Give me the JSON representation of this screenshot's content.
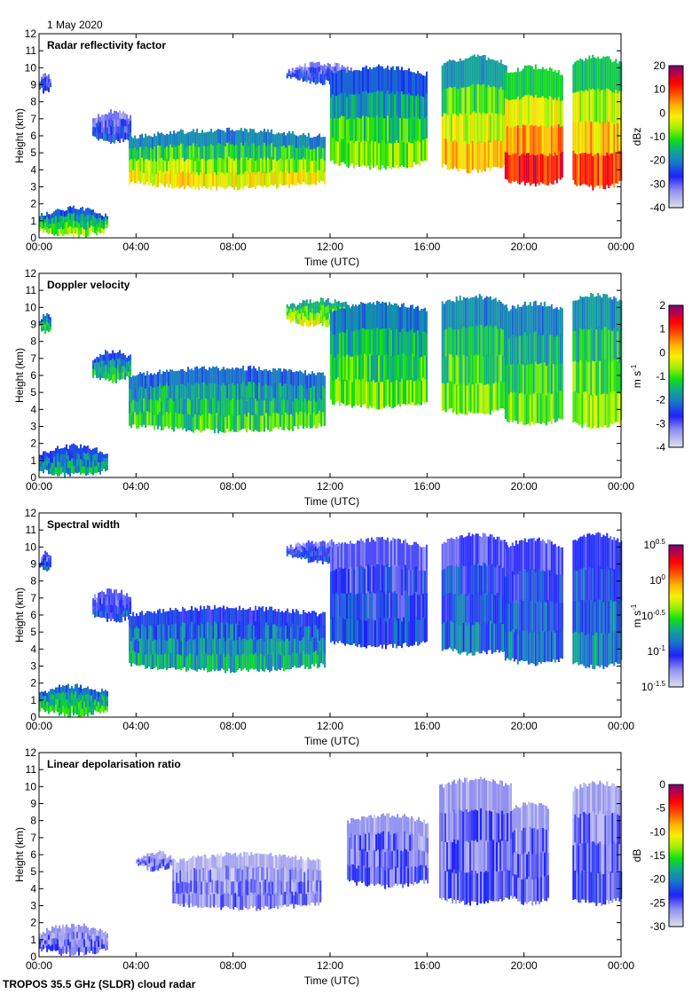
{
  "header": {
    "date": "1 May 2020"
  },
  "footer": {
    "instrument": "TROPOS 35.5 GHz (SLDR) cloud radar"
  },
  "colors": {
    "frame": "#000000",
    "background": "#ffffff"
  },
  "chart_data": [
    {
      "type": "heatmap",
      "title": "Radar reflectivity factor",
      "xlabel": "Time (UTC)",
      "ylabel": "Height (km)",
      "x_ticks": [
        "00:00",
        "04:00",
        "08:00",
        "12:00",
        "16:00",
        "20:00",
        "00:00"
      ],
      "y_ticks": [
        "0",
        "1",
        "2",
        "3",
        "4",
        "5",
        "6",
        "7",
        "8",
        "9",
        "10",
        "11",
        "12"
      ],
      "ylim": [
        0,
        12
      ],
      "xlim_hours": [
        0,
        24
      ],
      "colorbar": {
        "label": "dBz",
        "range": [
          -40,
          20
        ],
        "ticks": [
          "20",
          "10",
          "0",
          "-10",
          "-20",
          "-30",
          "-40"
        ]
      },
      "features": [
        {
          "t0": 0.0,
          "t1": 2.8,
          "h0": 0.0,
          "h1": 1.9,
          "v": 0.5
        },
        {
          "t0": 0.0,
          "t1": 0.5,
          "h0": 8.4,
          "h1": 9.8,
          "v": 0.25
        },
        {
          "t0": 2.2,
          "t1": 3.8,
          "h0": 5.5,
          "h1": 7.6,
          "v": 0.25
        },
        {
          "t0": 3.7,
          "t1": 11.8,
          "h0": 2.8,
          "h1": 6.5,
          "v": 0.6
        },
        {
          "t0": 10.2,
          "t1": 13.0,
          "h0": 9.0,
          "h1": 10.4,
          "v": 0.25
        },
        {
          "t0": 12.0,
          "t1": 16.0,
          "h0": 4.0,
          "h1": 10.2,
          "v": 0.5
        },
        {
          "t0": 16.6,
          "t1": 19.3,
          "h0": 3.8,
          "h1": 10.8,
          "v": 0.65
        },
        {
          "t0": 19.2,
          "t1": 21.6,
          "h0": 3.0,
          "h1": 10.2,
          "v": 0.8
        },
        {
          "t0": 22.0,
          "t1": 24.0,
          "h0": 2.8,
          "h1": 10.8,
          "v": 0.75
        }
      ]
    },
    {
      "type": "heatmap",
      "title": "Doppler velocity",
      "xlabel": "Time (UTC)",
      "ylabel": "Height (km)",
      "x_ticks": [
        "00:00",
        "04:00",
        "08:00",
        "12:00",
        "16:00",
        "20:00",
        "00:00"
      ],
      "y_ticks": [
        "0",
        "1",
        "2",
        "3",
        "4",
        "5",
        "6",
        "7",
        "8",
        "9",
        "10",
        "11",
        "12"
      ],
      "ylim": [
        0,
        12
      ],
      "xlim_hours": [
        0,
        24
      ],
      "colorbar": {
        "label": "m s-1",
        "range": [
          -4,
          2
        ],
        "ticks": [
          "2",
          "1",
          "0",
          "-1",
          "-2",
          "-3",
          "-4"
        ]
      },
      "features": [
        {
          "t0": 0.0,
          "t1": 2.8,
          "h0": 0.0,
          "h1": 2.0,
          "v": 0.45
        },
        {
          "t0": 0.0,
          "t1": 0.5,
          "h0": 8.4,
          "h1": 9.8,
          "v": 0.55
        },
        {
          "t0": 2.2,
          "t1": 3.8,
          "h0": 5.5,
          "h1": 7.6,
          "v": 0.5
        },
        {
          "t0": 3.7,
          "t1": 11.8,
          "h0": 2.6,
          "h1": 6.6,
          "v": 0.55
        },
        {
          "t0": 10.2,
          "t1": 13.0,
          "h0": 8.8,
          "h1": 10.6,
          "v": 0.7
        },
        {
          "t0": 12.0,
          "t1": 16.0,
          "h0": 4.0,
          "h1": 10.4,
          "v": 0.6
        },
        {
          "t0": 16.6,
          "t1": 19.3,
          "h0": 3.6,
          "h1": 10.8,
          "v": 0.62
        },
        {
          "t0": 19.2,
          "t1": 21.6,
          "h0": 3.0,
          "h1": 10.4,
          "v": 0.6
        },
        {
          "t0": 22.0,
          "t1": 24.0,
          "h0": 2.8,
          "h1": 10.9,
          "v": 0.65
        }
      ]
    },
    {
      "type": "heatmap",
      "title": "Spectral width",
      "xlabel": "Time (UTC)",
      "ylabel": "Height (km)",
      "x_ticks": [
        "00:00",
        "04:00",
        "08:00",
        "12:00",
        "16:00",
        "20:00",
        "00:00"
      ],
      "y_ticks": [
        "0",
        "1",
        "2",
        "3",
        "4",
        "5",
        "6",
        "7",
        "8",
        "9",
        "10",
        "11",
        "12"
      ],
      "ylim": [
        0,
        12
      ],
      "xlim_hours": [
        0,
        24
      ],
      "colorbar": {
        "label": "m s-1",
        "range_log10": [
          -1.5,
          0.5
        ],
        "ticks": [
          "10^0.5",
          "10^0",
          "10^-0.5",
          "10^-1",
          "10^-1.5"
        ]
      },
      "features": [
        {
          "t0": 0.0,
          "t1": 2.8,
          "h0": 0.0,
          "h1": 2.0,
          "v": 0.55
        },
        {
          "t0": 0.0,
          "t1": 0.5,
          "h0": 8.4,
          "h1": 9.8,
          "v": 0.3
        },
        {
          "t0": 2.2,
          "t1": 3.8,
          "h0": 5.5,
          "h1": 7.6,
          "v": 0.3
        },
        {
          "t0": 3.7,
          "t1": 11.8,
          "h0": 2.6,
          "h1": 6.6,
          "v": 0.45
        },
        {
          "t0": 10.2,
          "t1": 13.0,
          "h0": 9.0,
          "h1": 10.5,
          "v": 0.3
        },
        {
          "t0": 12.0,
          "t1": 16.0,
          "h0": 4.0,
          "h1": 10.6,
          "v": 0.3
        },
        {
          "t0": 16.6,
          "t1": 19.3,
          "h0": 3.6,
          "h1": 10.9,
          "v": 0.35
        },
        {
          "t0": 19.2,
          "t1": 21.6,
          "h0": 3.0,
          "h1": 10.6,
          "v": 0.35
        },
        {
          "t0": 22.0,
          "t1": 24.0,
          "h0": 2.8,
          "h1": 10.9,
          "v": 0.4
        }
      ]
    },
    {
      "type": "heatmap",
      "title": "Linear depolarisation ratio",
      "xlabel": "Time (UTC)",
      "ylabel": "Height (km)",
      "x_ticks": [
        "00:00",
        "04:00",
        "08:00",
        "12:00",
        "16:00",
        "20:00",
        "00:00"
      ],
      "y_ticks": [
        "0",
        "1",
        "2",
        "3",
        "4",
        "5",
        "6",
        "7",
        "8",
        "9",
        "10",
        "11",
        "12"
      ],
      "ylim": [
        0,
        12
      ],
      "xlim_hours": [
        0,
        24
      ],
      "colorbar": {
        "label": "dB",
        "range": [
          -30,
          0
        ],
        "ticks": [
          "0",
          "-5",
          "-10",
          "-15",
          "-20",
          "-25",
          "-30"
        ]
      },
      "features": [
        {
          "t0": 0.0,
          "t1": 2.8,
          "h0": 0.0,
          "h1": 2.0,
          "v": 0.2
        },
        {
          "t0": 4.0,
          "t1": 5.5,
          "h0": 5.0,
          "h1": 6.3,
          "v": 0.18
        },
        {
          "t0": 5.5,
          "t1": 11.6,
          "h0": 2.7,
          "h1": 6.2,
          "v": 0.15
        },
        {
          "t0": 12.7,
          "t1": 16.0,
          "h0": 4.0,
          "h1": 8.5,
          "v": 0.2
        },
        {
          "t0": 16.5,
          "t1": 19.5,
          "h0": 3.0,
          "h1": 10.6,
          "v": 0.2
        },
        {
          "t0": 19.5,
          "t1": 21.0,
          "h0": 3.0,
          "h1": 9.2,
          "v": 0.18
        },
        {
          "t0": 22.0,
          "t1": 24.0,
          "h0": 3.0,
          "h1": 10.4,
          "v": 0.2
        }
      ]
    }
  ]
}
